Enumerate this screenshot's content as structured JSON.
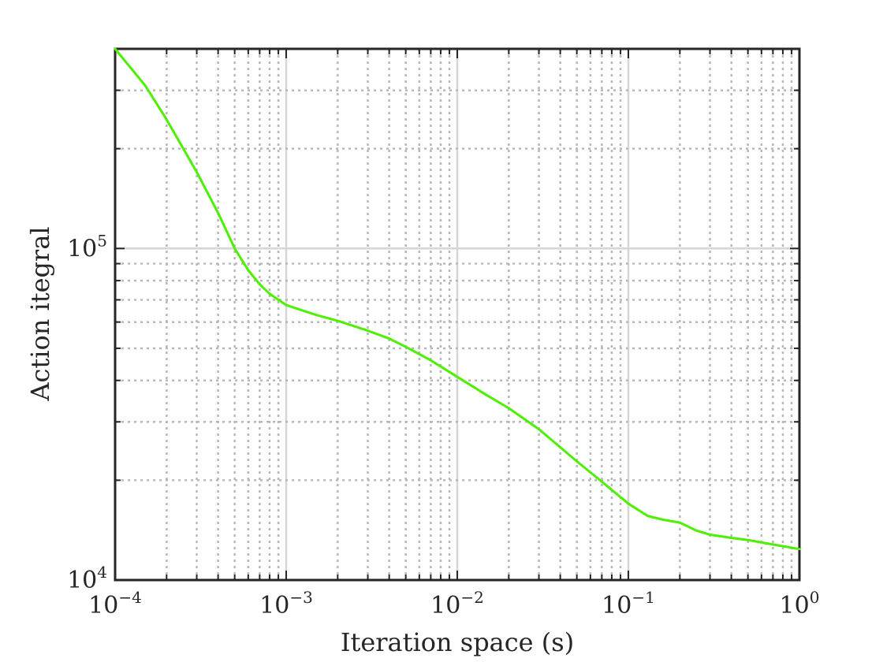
{
  "chart_data": {
    "type": "line",
    "xscale": "log",
    "yscale": "log",
    "xlabel": "Iteration space (s)",
    "ylabel": "Action itegral",
    "xlim": [
      0.0001,
      1
    ],
    "ylim": [
      10000,
      400000
    ],
    "grid": true,
    "x_ticks": [
      {
        "value": 0.0001,
        "base": "10",
        "exp": "−4"
      },
      {
        "value": 0.001,
        "base": "10",
        "exp": "−3"
      },
      {
        "value": 0.01,
        "base": "10",
        "exp": "−2"
      },
      {
        "value": 0.1,
        "base": "10",
        "exp": "−1"
      },
      {
        "value": 1,
        "base": "10",
        "exp": "0"
      }
    ],
    "y_ticks": [
      {
        "value": 10000,
        "base": "10",
        "exp": "4"
      },
      {
        "value": 100000,
        "base": "10",
        "exp": "5"
      }
    ],
    "series": [
      {
        "color": "#4cf000",
        "x": [
          0.0001,
          0.00015,
          0.0002,
          0.0003,
          0.0004,
          0.0005,
          0.0006,
          0.0007,
          0.0008,
          0.001,
          0.0015,
          0.002,
          0.003,
          0.004,
          0.005,
          0.007,
          0.01,
          0.015,
          0.02,
          0.03,
          0.05,
          0.07,
          0.1,
          0.13,
          0.16,
          0.2,
          0.25,
          0.3,
          0.4,
          0.5,
          0.7,
          1.0
        ],
        "y": [
          400000,
          310000,
          245000,
          170000,
          128000,
          100000,
          86000,
          78000,
          73000,
          67500,
          63000,
          60500,
          56500,
          53500,
          50500,
          46000,
          41000,
          36000,
          33000,
          28500,
          22800,
          19800,
          17000,
          15600,
          15200,
          14900,
          14100,
          13700,
          13400,
          13200,
          12800,
          12400
        ]
      }
    ]
  }
}
